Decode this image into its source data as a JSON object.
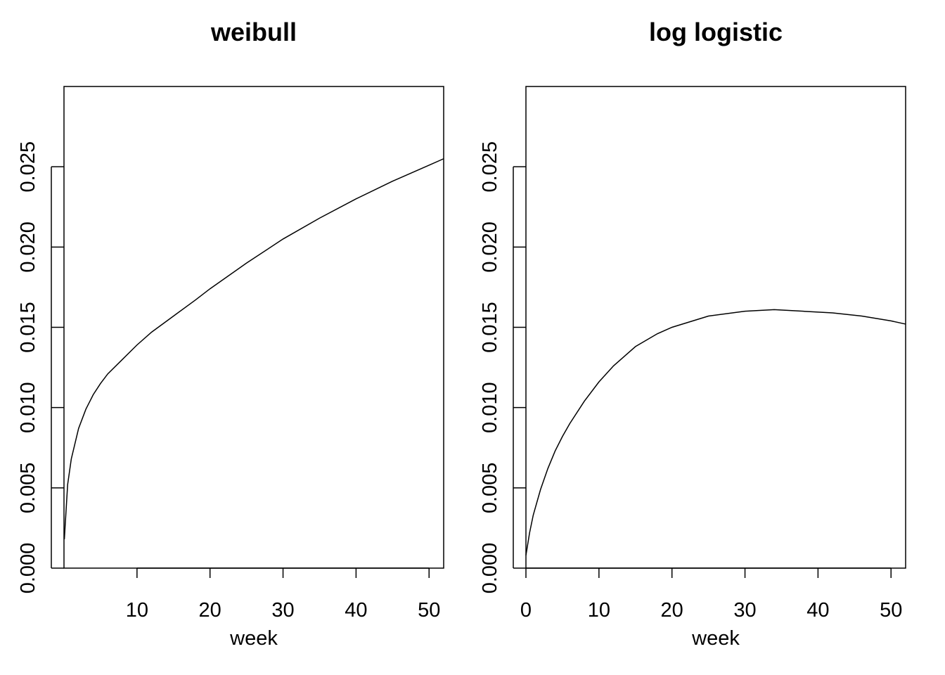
{
  "chart_data": [
    {
      "type": "line",
      "title": "weibull",
      "xlabel": "week",
      "ylabel": "",
      "xlim": [
        0,
        52
      ],
      "ylim": [
        0,
        0.03
      ],
      "x_ticks": [
        10,
        20,
        30,
        40,
        50
      ],
      "y_ticks": [
        "0.000",
        "0.005",
        "0.010",
        "0.015",
        "0.020",
        "0.025"
      ],
      "grid": false,
      "series": [
        {
          "x": [
            0.05,
            0.5,
            1,
            2,
            3,
            4,
            5,
            6,
            8,
            10,
            12,
            15,
            18,
            20,
            25,
            30,
            35,
            40,
            45,
            50,
            52
          ],
          "values": [
            0.0018,
            0.0052,
            0.0068,
            0.0087,
            0.0099,
            0.0108,
            0.0115,
            0.0121,
            0.013,
            0.0139,
            0.0147,
            0.0157,
            0.0167,
            0.0174,
            0.019,
            0.0205,
            0.0218,
            0.023,
            0.0241,
            0.0251,
            0.0255
          ]
        }
      ]
    },
    {
      "type": "line",
      "title": "log logistic",
      "xlabel": "week",
      "ylabel": "",
      "xlim": [
        0,
        52
      ],
      "ylim": [
        0,
        0.03
      ],
      "x_ticks": [
        0,
        10,
        20,
        30,
        40,
        50
      ],
      "y_ticks": [
        "0.000",
        "0.005",
        "0.010",
        "0.015",
        "0.020",
        "0.025"
      ],
      "grid": false,
      "series": [
        {
          "x": [
            0,
            0.5,
            1,
            2,
            3,
            4,
            5,
            6,
            8,
            10,
            12,
            15,
            18,
            20,
            25,
            30,
            34,
            38,
            42,
            46,
            50,
            52
          ],
          "values": [
            0.0008,
            0.0022,
            0.0033,
            0.0049,
            0.0062,
            0.0073,
            0.0082,
            0.009,
            0.0104,
            0.0116,
            0.0126,
            0.0138,
            0.0146,
            0.015,
            0.0157,
            0.016,
            0.0161,
            0.016,
            0.0159,
            0.0157,
            0.0154,
            0.0152
          ]
        }
      ]
    }
  ]
}
